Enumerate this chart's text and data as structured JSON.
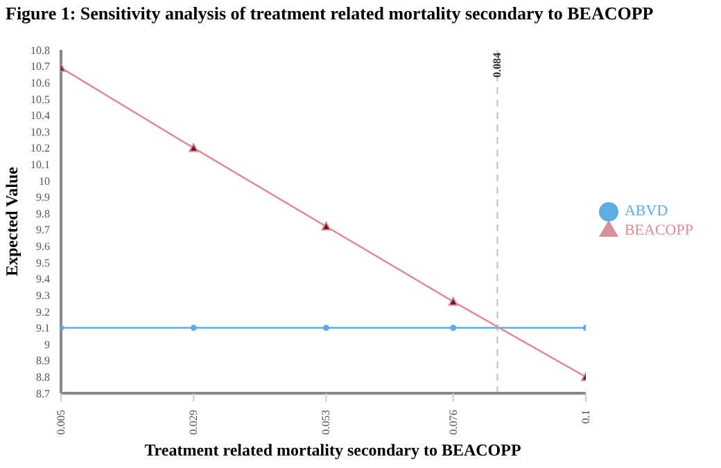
{
  "chart_data": {
    "type": "line",
    "title": "Figure 1: Sensitivity analysis of treatment related mortality secondary to BEACOPP",
    "xlabel": "Treatment related mortality secondary to BEACOPP",
    "ylabel": "Expected Value",
    "x": [
      0.005,
      0.029,
      0.053,
      0.076,
      0.1
    ],
    "series": [
      {
        "name": "ABVD",
        "color": "#5dade2",
        "marker": "circle",
        "values": [
          9.1,
          9.1,
          9.1,
          9.1,
          9.1
        ]
      },
      {
        "name": "BEACOPP",
        "color": "#d9909a",
        "marker": "triangle",
        "values": [
          10.69,
          10.2,
          9.72,
          9.26,
          8.8
        ]
      }
    ],
    "xlim": [
      0.005,
      0.1
    ],
    "xticks": [
      0.005,
      0.029,
      0.053,
      0.076,
      0.1
    ],
    "ylim": [
      8.7,
      10.8
    ],
    "yticks": [
      8.7,
      8.8,
      8.9,
      9,
      9.1,
      9.2,
      9.3,
      9.4,
      9.5,
      9.6,
      9.7,
      9.8,
      9.9,
      10,
      10.1,
      10.2,
      10.3,
      10.4,
      10.5,
      10.6,
      10.7,
      10.8
    ],
    "ref_lines": [
      {
        "axis": "x",
        "value": 0.084,
        "label": "0.084",
        "color": "#c0c0c0",
        "line_style": "dashed"
      }
    ],
    "grid": false,
    "legend": "right",
    "line_style": "solid"
  }
}
